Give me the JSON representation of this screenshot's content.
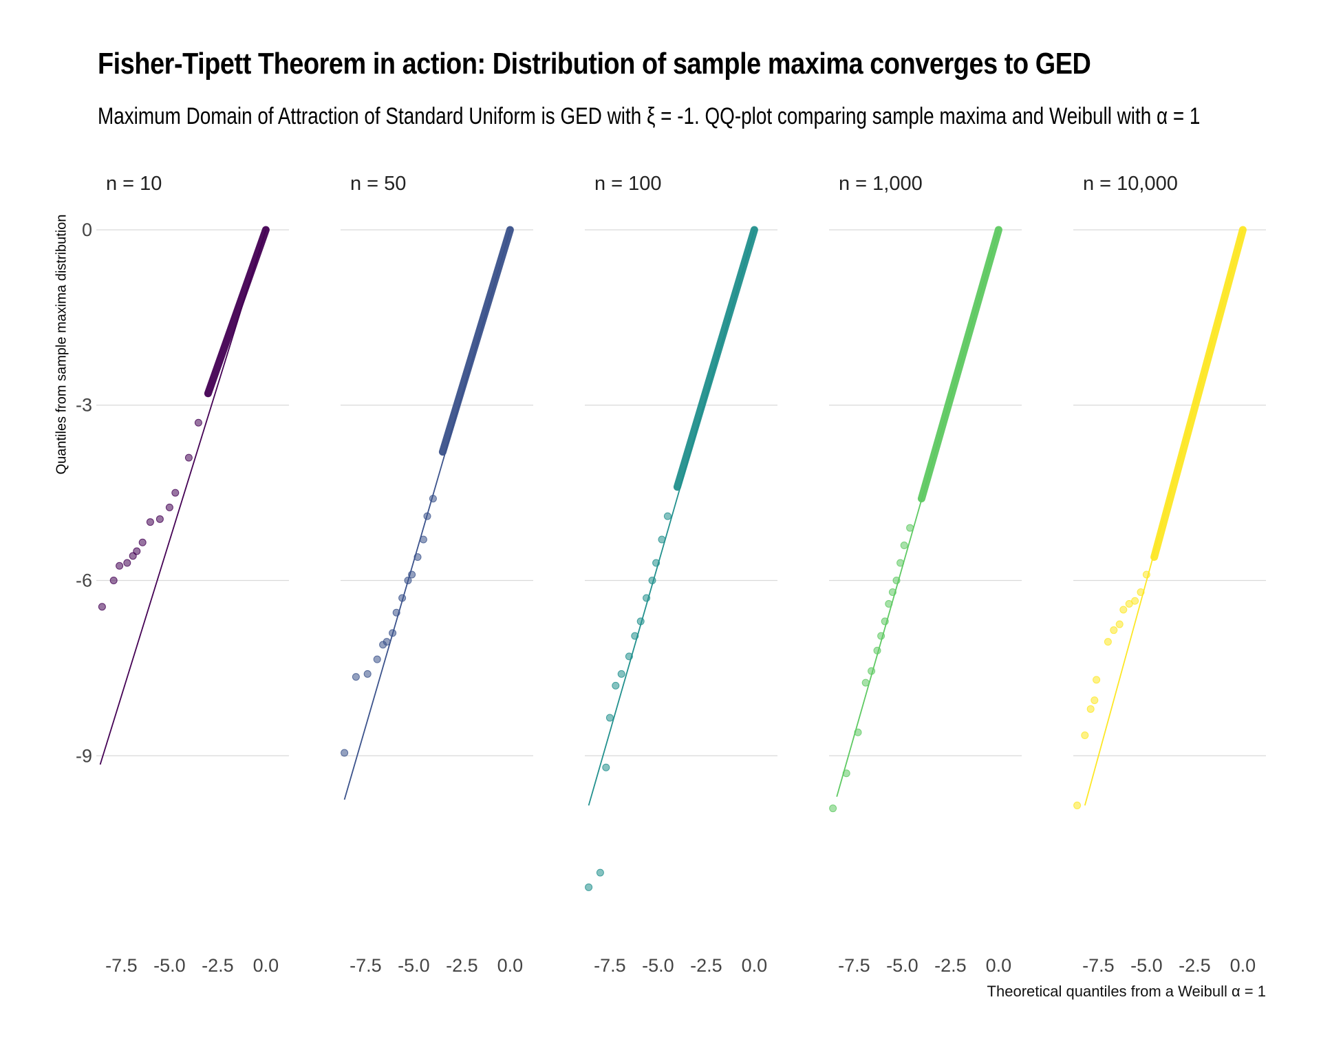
{
  "chart_data": {
    "type": "scatter",
    "title": "Fisher-Tipett Theorem in action: Distribution of sample maxima converges to GED",
    "subtitle": "Maximum Domain of Attraction of Standard Uniform is GED with ξ = -1. QQ-plot comparing sample maxima and Weibull with α = 1",
    "xlabel": "Theoretical quantiles from a Weibull α = 1",
    "ylabel": "Quantiles from sample maxima distribution",
    "xlim": [
      -8.8,
      1.2
    ],
    "ylim": [
      -12.2,
      0.4
    ],
    "x_ticks": [
      -7.5,
      -5.0,
      -2.5,
      0.0
    ],
    "x_tick_labels": [
      "-7.5",
      "-5.0",
      "-2.5",
      "0.0"
    ],
    "y_ticks": [
      0,
      -3,
      -6,
      -9
    ],
    "y_tick_labels": [
      "0",
      "-3",
      "-6",
      "-9"
    ],
    "grid": "horizontal-major",
    "legend": "none",
    "facets": [
      {
        "label": "n = 10",
        "color": "#440154",
        "reference_line": {
          "x": [
            -8.6,
            0.0
          ],
          "y": [
            -9.15,
            0.0
          ]
        },
        "dense_band": {
          "x": [
            -3.0,
            0.0
          ],
          "y_at_start": -2.8,
          "y_at_end": 0.0
        },
        "points": [
          [
            -3.5,
            -3.3
          ],
          [
            -4.0,
            -3.9
          ],
          [
            -4.7,
            -4.5
          ],
          [
            -5.0,
            -4.75
          ],
          [
            -5.5,
            -4.95
          ],
          [
            -6.0,
            -5.0
          ],
          [
            -6.4,
            -5.35
          ],
          [
            -6.7,
            -5.5
          ],
          [
            -6.9,
            -5.58
          ],
          [
            -7.2,
            -5.7
          ],
          [
            -7.6,
            -5.75
          ],
          [
            -7.9,
            -6.0
          ],
          [
            -8.5,
            -6.45
          ]
        ]
      },
      {
        "label": "n = 50",
        "color": "#3b528b",
        "reference_line": {
          "x": [
            -8.6,
            0.0
          ],
          "y": [
            -9.75,
            0.0
          ]
        },
        "dense_band": {
          "x": [
            -3.5,
            0.0
          ],
          "y_at_start": -3.8,
          "y_at_end": 0.0
        },
        "points": [
          [
            -4.0,
            -4.6
          ],
          [
            -4.3,
            -4.9
          ],
          [
            -4.5,
            -5.3
          ],
          [
            -4.8,
            -5.6
          ],
          [
            -5.1,
            -5.9
          ],
          [
            -5.3,
            -6.0
          ],
          [
            -5.6,
            -6.3
          ],
          [
            -5.9,
            -6.55
          ],
          [
            -6.1,
            -6.9
          ],
          [
            -6.4,
            -7.05
          ],
          [
            -6.6,
            -7.1
          ],
          [
            -6.9,
            -7.35
          ],
          [
            -7.4,
            -7.6
          ],
          [
            -8.0,
            -7.65
          ],
          [
            -8.6,
            -8.95
          ]
        ]
      },
      {
        "label": "n = 100",
        "color": "#21908d",
        "reference_line": {
          "x": [
            -8.6,
            0.0
          ],
          "y": [
            -9.85,
            0.0
          ]
        },
        "dense_band": {
          "x": [
            -4.0,
            0.0
          ],
          "y_at_start": -4.4,
          "y_at_end": 0.0
        },
        "points": [
          [
            -4.5,
            -4.9
          ],
          [
            -4.8,
            -5.3
          ],
          [
            -5.1,
            -5.7
          ],
          [
            -5.3,
            -6.0
          ],
          [
            -5.6,
            -6.3
          ],
          [
            -5.9,
            -6.7
          ],
          [
            -6.2,
            -6.95
          ],
          [
            -6.5,
            -7.3
          ],
          [
            -6.9,
            -7.6
          ],
          [
            -7.2,
            -7.8
          ],
          [
            -7.5,
            -8.35
          ],
          [
            -7.7,
            -9.2
          ],
          [
            -8.0,
            -11.0
          ],
          [
            -8.6,
            -11.25
          ]
        ]
      },
      {
        "label": "n = 1,000",
        "color": "#5ec962",
        "reference_line": {
          "x": [
            -8.4,
            0.0
          ],
          "y": [
            -9.7,
            0.0
          ]
        },
        "dense_band": {
          "x": [
            -4.0,
            0.0
          ],
          "y_at_start": -4.6,
          "y_at_end": 0.0
        },
        "points": [
          [
            -4.6,
            -5.1
          ],
          [
            -4.9,
            -5.4
          ],
          [
            -5.1,
            -5.7
          ],
          [
            -5.3,
            -6.0
          ],
          [
            -5.5,
            -6.2
          ],
          [
            -5.7,
            -6.4
          ],
          [
            -5.9,
            -6.7
          ],
          [
            -6.1,
            -6.95
          ],
          [
            -6.3,
            -7.2
          ],
          [
            -6.6,
            -7.55
          ],
          [
            -6.9,
            -7.75
          ],
          [
            -7.3,
            -8.6
          ],
          [
            -7.9,
            -9.3
          ],
          [
            -8.6,
            -9.9
          ]
        ]
      },
      {
        "label": "n = 10,000",
        "color": "#fde725",
        "reference_line": {
          "x": [
            -8.2,
            0.0
          ],
          "y": [
            -9.85,
            0.0
          ]
        },
        "dense_band": {
          "x": [
            -4.6,
            0.0
          ],
          "y_at_start": -5.6,
          "y_at_end": 0.0
        },
        "points": [
          [
            -5.0,
            -5.9
          ],
          [
            -5.3,
            -6.2
          ],
          [
            -5.6,
            -6.35
          ],
          [
            -5.9,
            -6.4
          ],
          [
            -6.2,
            -6.5
          ],
          [
            -6.4,
            -6.75
          ],
          [
            -6.7,
            -6.85
          ],
          [
            -7.0,
            -7.05
          ],
          [
            -7.6,
            -7.7
          ],
          [
            -7.7,
            -8.05
          ],
          [
            -7.9,
            -8.2
          ],
          [
            -8.2,
            -8.65
          ],
          [
            -8.6,
            -9.85
          ]
        ]
      }
    ]
  }
}
